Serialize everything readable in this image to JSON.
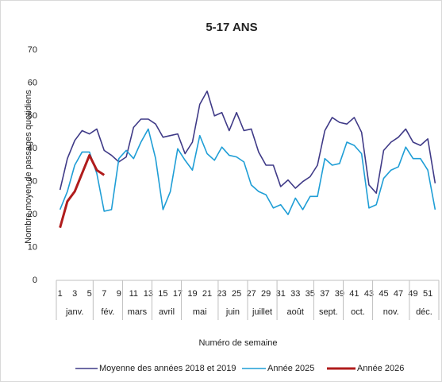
{
  "chart_data": {
    "type": "line",
    "title": "5-17 ANS",
    "y_label": "Nombre moyen de passages quotidiens",
    "x_label": "Numéro de semaine",
    "categories": [
      "1",
      null,
      "3",
      null,
      "5",
      null,
      "7",
      null,
      "9",
      null,
      "11",
      null,
      "13",
      null,
      "15",
      null,
      "17",
      null,
      "19",
      null,
      "21",
      null,
      "23",
      null,
      "25",
      null,
      "27",
      null,
      "29",
      null,
      "31",
      null,
      "33",
      null,
      "35",
      null,
      "37",
      null,
      "39",
      null,
      "41",
      null,
      "43",
      null,
      "45",
      null,
      "47",
      null,
      "49",
      null,
      "51",
      null
    ],
    "x_groups": [
      {
        "label": "janv.",
        "from": 1,
        "to": 5
      },
      {
        "label": "fév.",
        "from": 6,
        "to": 9
      },
      {
        "label": "mars",
        "from": 10,
        "to": 13
      },
      {
        "label": "avril",
        "from": 14,
        "to": 17
      },
      {
        "label": "mai",
        "from": 18,
        "to": 22
      },
      {
        "label": "juin",
        "from": 23,
        "to": 26
      },
      {
        "label": "juillet",
        "from": 27,
        "to": 30
      },
      {
        "label": "août",
        "from": 31,
        "to": 35
      },
      {
        "label": "sept.",
        "from": 36,
        "to": 39
      },
      {
        "label": "oct.",
        "from": 40,
        "to": 43
      },
      {
        "label": "nov.",
        "from": 44,
        "to": 48
      },
      {
        "label": "déc.",
        "from": 49,
        "to": 52
      }
    ],
    "series": [
      {
        "name": "Moyenne des années 2018 et 2019",
        "color": "#3f3a87",
        "values": [
          27.5,
          37,
          42.5,
          45.5,
          44.5,
          46,
          39.5,
          38,
          36,
          37.5,
          46.5,
          49,
          49,
          47.5,
          43.5,
          44,
          44.5,
          38.5,
          42,
          53.5,
          57.5,
          50,
          51,
          45.5,
          51,
          45.5,
          46,
          39,
          35,
          35,
          28.5,
          30.5,
          28,
          30,
          31.5,
          35,
          45.5,
          49.5,
          48,
          47.5,
          49.5,
          45,
          29,
          26.5,
          39.5,
          42,
          43.5,
          46,
          42,
          41,
          43,
          29.5
        ]
      },
      {
        "name": "Année 2025",
        "color": "#1f9ed6",
        "values": [
          21.5,
          27,
          35,
          39,
          39,
          32.5,
          21,
          21.5,
          37,
          39.5,
          37,
          42,
          46,
          37,
          21.5,
          27,
          40,
          36.5,
          33.5,
          44,
          38.5,
          36.5,
          40.5,
          38,
          37.5,
          36,
          29,
          27,
          26,
          22,
          23,
          20,
          25,
          21.5,
          25.5,
          25.5,
          37,
          35,
          35.5,
          42,
          41,
          38.5,
          22,
          23,
          31,
          33.5,
          34.5,
          40.5,
          37,
          37,
          33.5,
          21.5
        ]
      },
      {
        "name": "Année 2026",
        "color": "#b01c1c",
        "values": [
          16,
          24,
          27,
          32.5,
          38,
          33.5,
          32,
          null,
          null,
          null,
          null,
          null,
          null,
          null,
          null,
          null,
          null,
          null,
          null,
          null,
          null,
          null,
          null,
          null,
          null,
          null,
          null,
          null,
          null,
          null,
          null,
          null,
          null,
          null,
          null,
          null,
          null,
          null,
          null,
          null,
          null,
          null,
          null,
          null,
          null,
          null,
          null,
          null,
          null,
          null,
          null,
          null
        ]
      }
    ],
    "ylim": [
      0,
      70
    ],
    "yticks": [
      0,
      10,
      20,
      30,
      40,
      50,
      60,
      70
    ],
    "grid": false,
    "legend": "bottom"
  }
}
